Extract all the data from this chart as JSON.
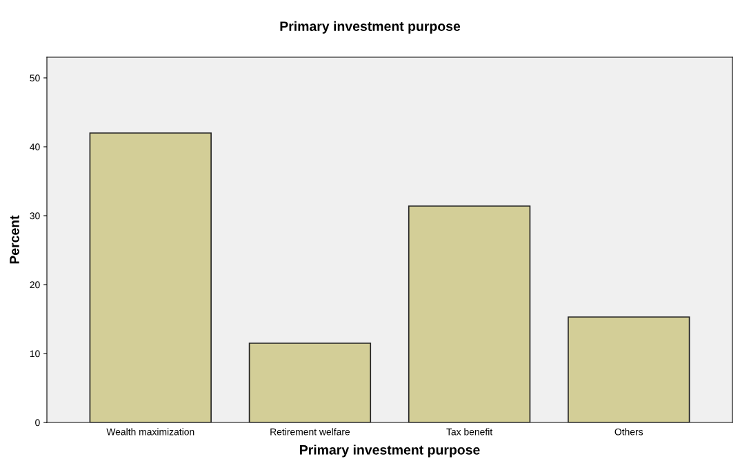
{
  "chart_data": {
    "type": "bar",
    "title": "Primary investment purpose",
    "xlabel": "Primary investment purpose",
    "ylabel": "Percent",
    "categories": [
      "Wealth maximization",
      "Retirement welfare",
      "Tax benefit",
      "Others"
    ],
    "values": [
      42.0,
      11.5,
      31.4,
      15.3
    ],
    "color": "#d3ce97",
    "ylim": [
      0,
      53
    ],
    "yticks": [
      0,
      10,
      20,
      30,
      40,
      50
    ],
    "grid": false,
    "legend": false
  }
}
